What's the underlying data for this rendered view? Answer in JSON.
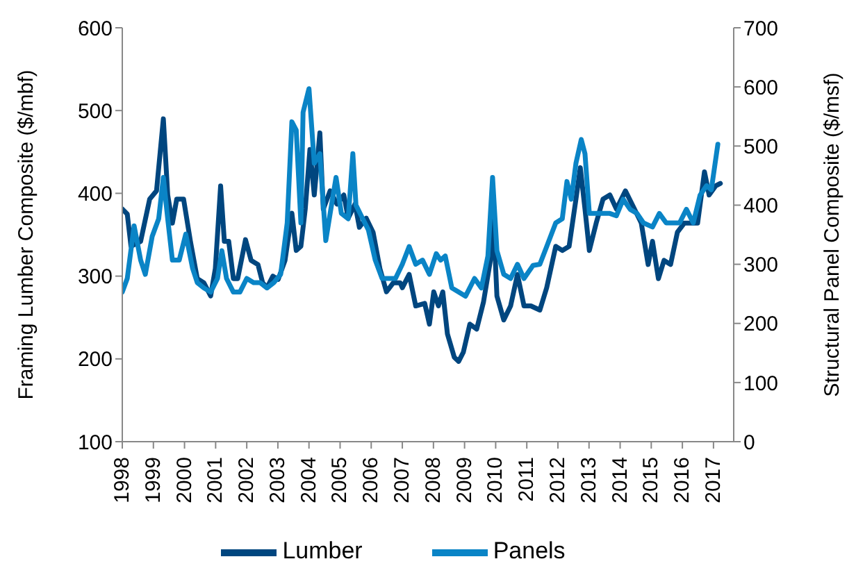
{
  "chart_data": {
    "type": "line",
    "xlabel": null,
    "ylabel": "Framing Lumber Composite ($/mbf)",
    "y2label": "Structural Panel Composite ($/msf)",
    "xlim": [
      1998,
      2017.65
    ],
    "xticks": [
      1998,
      1999,
      2000,
      2001,
      2002,
      2003,
      2004,
      2005,
      2006,
      2007,
      2008,
      2009,
      2010,
      2011,
      2012,
      2013,
      2014,
      2015,
      2016,
      2017
    ],
    "ylim": [
      100,
      600
    ],
    "yticks": [
      100,
      200,
      300,
      400,
      500,
      600
    ],
    "y2lim": [
      0,
      700
    ],
    "y2ticks": [
      0,
      100,
      200,
      300,
      400,
      500,
      600,
      700
    ],
    "legend": "bottom",
    "series": [
      {
        "name": "Lumber",
        "color": "#00467f",
        "x": [
          1998.0,
          1998.16,
          1998.28,
          1998.59,
          1998.88,
          1999.1,
          1999.32,
          1999.46,
          1999.61,
          1999.75,
          1999.97,
          2000.19,
          2000.41,
          2000.62,
          2000.84,
          2000.99,
          2001.16,
          2001.28,
          2001.42,
          2001.57,
          2001.71,
          2001.96,
          2002.14,
          2002.36,
          2002.51,
          2002.65,
          2002.84,
          2003.01,
          2003.23,
          2003.45,
          2003.59,
          2003.74,
          2003.88,
          2004.03,
          2004.17,
          2004.35,
          2004.46,
          2004.68,
          2004.9,
          2005.12,
          2005.26,
          2005.48,
          2005.62,
          2005.84,
          2006.06,
          2006.28,
          2006.49,
          2006.71,
          2006.93,
          2007.0,
          2007.22,
          2007.43,
          2007.72,
          2007.87,
          2008.01,
          2008.16,
          2008.3,
          2008.45,
          2008.67,
          2008.81,
          2008.96,
          2009.17,
          2009.39,
          2009.61,
          2009.83,
          2009.9,
          2010.04,
          2010.26,
          2010.48,
          2010.7,
          2010.91,
          2011.13,
          2011.42,
          2011.64,
          2011.93,
          2012.14,
          2012.36,
          2012.58,
          2012.72,
          2012.87,
          2013.01,
          2013.23,
          2013.45,
          2013.67,
          2013.88,
          2014.17,
          2014.46,
          2014.68,
          2014.9,
          2015.04,
          2015.23,
          2015.41,
          2015.62,
          2015.84,
          2016.06,
          2016.28,
          2016.49,
          2016.71,
          2016.86,
          2017.07,
          2017.22
        ],
        "values": [
          381,
          375,
          336,
          342,
          393,
          403,
          490,
          398,
          364,
          393,
          393,
          342,
          297,
          292,
          276,
          309,
          409,
          342,
          342,
          297,
          297,
          344,
          319,
          314,
          292,
          286,
          300,
          296,
          319,
          376,
          331,
          336,
          381,
          453,
          398,
          473,
          381,
          403,
          387,
          398,
          370,
          387,
          359,
          370,
          353,
          309,
          281,
          292,
          292,
          286,
          302,
          264,
          267,
          242,
          281,
          264,
          281,
          230,
          202,
          197,
          208,
          242,
          236,
          269,
          319,
          393,
          276,
          247,
          264,
          302,
          264,
          264,
          259,
          286,
          336,
          331,
          336,
          393,
          431,
          381,
          331,
          364,
          393,
          398,
          381,
          403,
          381,
          364,
          314,
          342,
          297,
          319,
          314,
          353,
          364,
          364,
          364,
          426,
          398,
          409,
          412
        ]
      },
      {
        "name": "Panels",
        "color": "#0a84c6",
        "axis": "y2",
        "x": [
          1998.0,
          1998.16,
          1998.38,
          1998.59,
          1998.74,
          1998.96,
          1999.17,
          1999.32,
          1999.46,
          1999.61,
          1999.83,
          2000.04,
          2000.26,
          2000.41,
          2000.62,
          2000.84,
          2001.06,
          2001.2,
          2001.35,
          2001.57,
          2001.78,
          2002.0,
          2002.22,
          2002.43,
          2002.65,
          2002.87,
          2003.09,
          2003.3,
          2003.45,
          2003.59,
          2003.74,
          2003.81,
          2004.0,
          2004.17,
          2004.35,
          2004.54,
          2004.68,
          2004.87,
          2005.04,
          2005.26,
          2005.41,
          2005.51,
          2005.7,
          2005.91,
          2006.13,
          2006.35,
          2006.57,
          2006.78,
          2007.0,
          2007.22,
          2007.43,
          2007.65,
          2007.87,
          2008.09,
          2008.23,
          2008.38,
          2008.59,
          2008.81,
          2009.03,
          2009.32,
          2009.54,
          2009.75,
          2009.9,
          2010.04,
          2010.26,
          2010.48,
          2010.7,
          2010.91,
          2011.2,
          2011.42,
          2011.64,
          2011.93,
          2012.14,
          2012.29,
          2012.43,
          2012.58,
          2012.75,
          2012.87,
          2013.01,
          2013.23,
          2013.45,
          2013.67,
          2013.88,
          2014.1,
          2014.32,
          2014.54,
          2014.75,
          2015.04,
          2015.26,
          2015.48,
          2015.7,
          2015.91,
          2016.13,
          2016.35,
          2016.57,
          2016.78,
          2016.93,
          2017.14
        ],
        "values": [
          253,
          276,
          365,
          307,
          283,
          347,
          377,
          447,
          377,
          307,
          307,
          351,
          293,
          269,
          260,
          253,
          276,
          323,
          276,
          253,
          253,
          276,
          269,
          269,
          260,
          269,
          283,
          370,
          541,
          527,
          370,
          557,
          597,
          471,
          487,
          340,
          386,
          447,
          386,
          377,
          487,
          400,
          380,
          358,
          307,
          276,
          276,
          276,
          300,
          330,
          300,
          307,
          283,
          318,
          307,
          314,
          260,
          253,
          246,
          276,
          260,
          314,
          447,
          323,
          283,
          276,
          300,
          276,
          298,
          300,
          330,
          370,
          377,
          440,
          410,
          471,
          511,
          487,
          386,
          386,
          386,
          386,
          382,
          410,
          393,
          386,
          370,
          363,
          386,
          370,
          370,
          370,
          393,
          370,
          417,
          433,
          426,
          503
        ]
      }
    ]
  }
}
